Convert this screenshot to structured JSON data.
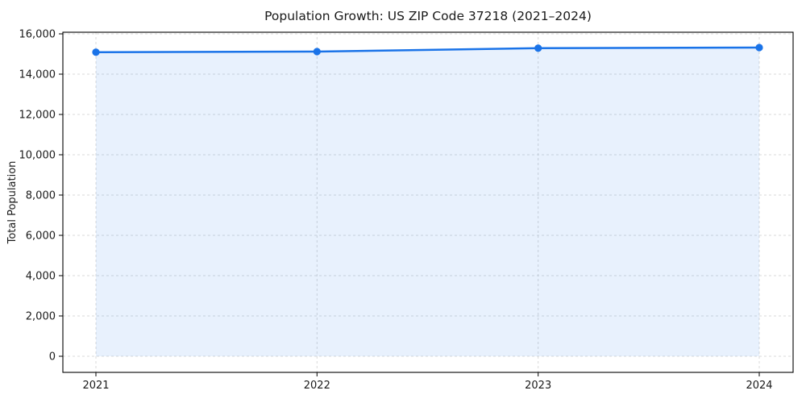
{
  "chart_data": {
    "type": "line",
    "title": "Population Growth: US ZIP Code 37218 (2021–2024)",
    "xlabel": "",
    "ylabel": "Total Population",
    "x": [
      2021,
      2022,
      2023,
      2024
    ],
    "xtick_labels": [
      "2021",
      "2022",
      "2023",
      "2024"
    ],
    "series": [
      {
        "name": "Total Population",
        "values": [
          15090,
          15120,
          15290,
          15320
        ]
      }
    ],
    "ylim": [
      0,
      16000
    ],
    "ytick_step": 2000,
    "ytick_labels": [
      "0",
      "2,000",
      "4,000",
      "6,000",
      "8,000",
      "10,000",
      "12,000",
      "14,000",
      "16,000"
    ],
    "grid": "dashed",
    "legend": "none",
    "colors": {
      "line": "#1a73e8",
      "marker": "#1a73e8",
      "area_fill": "rgba(26,115,232,0.10)",
      "grid_line": "#d9d9d9",
      "spine": "#000000",
      "background": "#ffffff"
    },
    "marker_style": "filled-circle"
  }
}
